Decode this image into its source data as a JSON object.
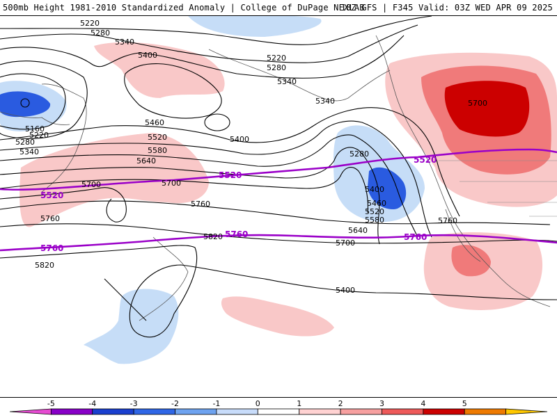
{
  "header": {
    "left": "500mb Height 1981-2010 Standardized Anomaly | College of DuPage NEXLAB",
    "right": "18Z GFS | F345 Valid: 03Z WED APR 09 2025"
  },
  "contour_labels": [
    "5220",
    "5280",
    "5340",
    "5400",
    "5220",
    "5280",
    "5340",
    "5340",
    "5400",
    "5460",
    "5520",
    "5580",
    "5640",
    "5700",
    "5700",
    "5760",
    "5760",
    "5820",
    "5820",
    "5160",
    "5220",
    "5280",
    "5340",
    "5280",
    "5400",
    "5460",
    "5520",
    "5580",
    "5640",
    "5700",
    "5760",
    "5700",
    "5400"
  ],
  "highlight_contours": [
    "5520",
    "5520",
    "5760",
    "5760",
    "5760"
  ],
  "colorbar": {
    "ticks": [
      "-5",
      "-4",
      "-3",
      "-2",
      "-1",
      "0",
      "1",
      "2",
      "3",
      "4",
      "5"
    ],
    "colors": [
      "#e64bd2",
      "#8800c8",
      "#1a3fcf",
      "#2f66e6",
      "#6ea3f0",
      "#c8dcfa",
      "#ffffff",
      "#ffd2d2",
      "#f7a0a0",
      "#ee5a5a",
      "#cc0000",
      "#ee7a00",
      "#ffc800"
    ]
  },
  "anomaly_colors": {
    "neg1": "#c6ddf7",
    "neg2": "#6a9ae8",
    "neg3": "#2a5be0",
    "pos1": "#f9c8c8",
    "pos2": "#f07a7a",
    "pos3": "#cc0000",
    "highlight_line": "#9a00c8"
  }
}
